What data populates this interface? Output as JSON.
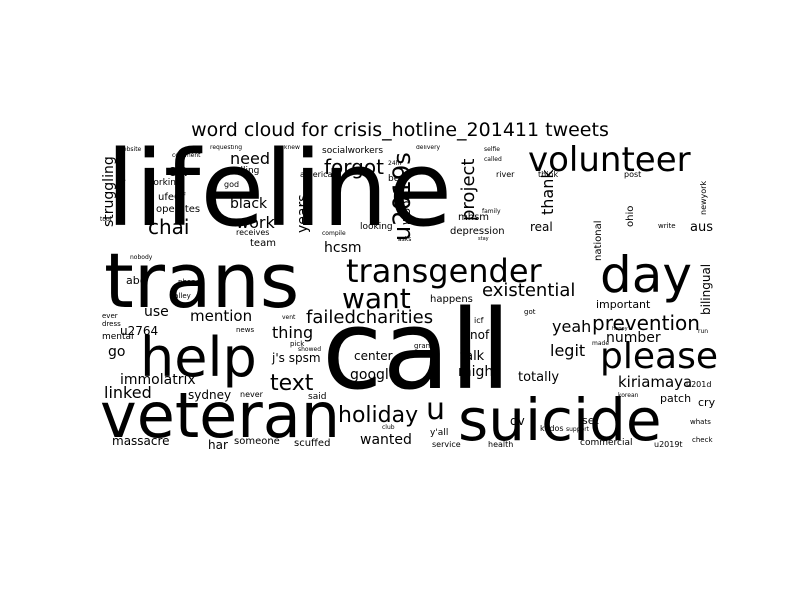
{
  "title": "word cloud for crisis_hotline_201411 tweets",
  "colors": {
    "background": "#ffffff",
    "text": "#000000"
  },
  "words": {
    "lifeline": "lifeline",
    "call": "call",
    "trans": "trans",
    "veteran": "veteran",
    "suicide": "suicide",
    "help": "help",
    "volunteer": "volunteer",
    "transgender": "transgender",
    "day": "day",
    "please": "please",
    "want": "want",
    "prevention": "prevention",
    "holiday": "holiday",
    "existential": "existential",
    "failedcharities": "failedcharities",
    "text": "text",
    "u": "u",
    "forgot": "forgot",
    "chai": "chai",
    "need": "need",
    "work": "work",
    "u2019s": "u2019s",
    "project": "project",
    "oh": "oh",
    "yeah": "yeah",
    "legit": "legit",
    "number": "number",
    "kiriamaya": "kiriamaya",
    "important": "important",
    "wanted": "wanted",
    "google": "google",
    "mention": "mention",
    "immolatrix": "immolatrix",
    "linked": "linked",
    "sydney": "sydney",
    "thing": "thing",
    "j_s_spsm": "j's spsm",
    "black": "black",
    "hcsm": "hcsm",
    "years": "years",
    "thank": "thank",
    "might": "might",
    "talk": "talk",
    "totally": "totally",
    "center": "center",
    "nof": "nof",
    "dv": "dv",
    "set": "set",
    "patch": "patch",
    "cry": "cry",
    "aus": "aus",
    "bilingual": "bilingual",
    "go": "go",
    "use": "use",
    "u2764": "u2764",
    "massacre": "massacre",
    "har": "har",
    "someone": "someone",
    "scuffed": "scuffed",
    "said": "said",
    "service": "service",
    "health": "health",
    "commercial": "commercial",
    "happens": "happens",
    "depression": "depression",
    "real": "real",
    "mhsm": "mhsm",
    "wood": "wood",
    "team": "team",
    "struggling": "struggling",
    "ufeof": "ufeOf",
    "working": "working",
    "operates": "operates",
    "socialworkers": "socialworkers",
    "american": "american",
    "calling": "calling",
    "god": "god",
    "looking": "looking",
    "bed": "bed",
    "river": "river",
    "think": "think",
    "post": "post",
    "national": "national",
    "ohio": "ohio",
    "newyork": "newyork",
    "write": "write",
    "mental": "mental",
    "icf": "icf",
    "kudos": "kudos",
    "news": "news",
    "never": "never",
    "y_all": "y'all",
    "grants": "grants",
    "comment": "comment",
    "requesting": "requesting",
    "delivery": "delivery",
    "selfie": "selfie",
    "called": "called",
    "receives": "receives",
    "phone": "phone",
    "valley": "valley",
    "dress": "dress",
    "ever": "ever",
    "website": "website",
    "family": "family",
    "abe": "abe",
    "u201d": "u201d",
    "u2019t": "u2019t",
    "support": "support",
    "made": "made",
    "check": "check",
    "whats": "whats",
    "club": "club",
    "vent": "vent",
    "pick": "pick",
    "showed": "showed",
    "troops": "troops",
    "got": "got",
    "24hr": "24hr",
    "knew": "knew",
    "stay": "stay",
    "run": "run",
    "asks": "asks",
    "compile": "compile",
    "tool": "tool",
    "nobody": "nobody",
    "korean": "korean",
    "happy": "happy"
  }
}
